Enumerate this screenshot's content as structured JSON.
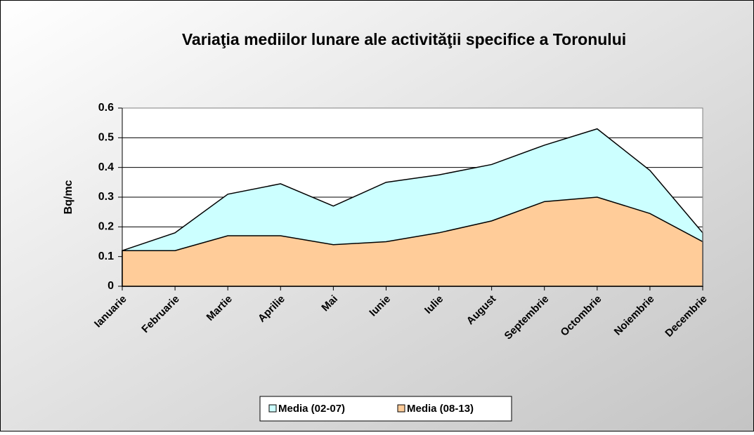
{
  "chart_data": {
    "type": "area",
    "title": "Variaţia mediilor lunare ale activităţii specifice a Toronului",
    "ylabel": "Bq/mc",
    "categories": [
      "Ianuarie",
      "Februarie",
      "Martie",
      "Aprilie",
      "Mai",
      "Iunie",
      "Iulie",
      "August",
      "Septembrie",
      "Octombrie",
      "Noiembrie",
      "Decembrie"
    ],
    "series": [
      {
        "name": "Media (02-07)",
        "color": "#ccffff",
        "values": [
          0.12,
          0.18,
          0.31,
          0.345,
          0.27,
          0.35,
          0.375,
          0.41,
          0.475,
          0.53,
          0.39,
          0.18
        ]
      },
      {
        "name": "Media (08-13)",
        "color": "#ffcc99",
        "values": [
          0.12,
          0.12,
          0.17,
          0.17,
          0.14,
          0.15,
          0.18,
          0.22,
          0.285,
          0.3,
          0.245,
          0.15
        ]
      }
    ],
    "ylim": [
      0,
      0.6
    ],
    "yticks": [
      0,
      0.1,
      0.2,
      0.3,
      0.4,
      0.5,
      0.6
    ],
    "grid": true,
    "legend": "bottom"
  }
}
